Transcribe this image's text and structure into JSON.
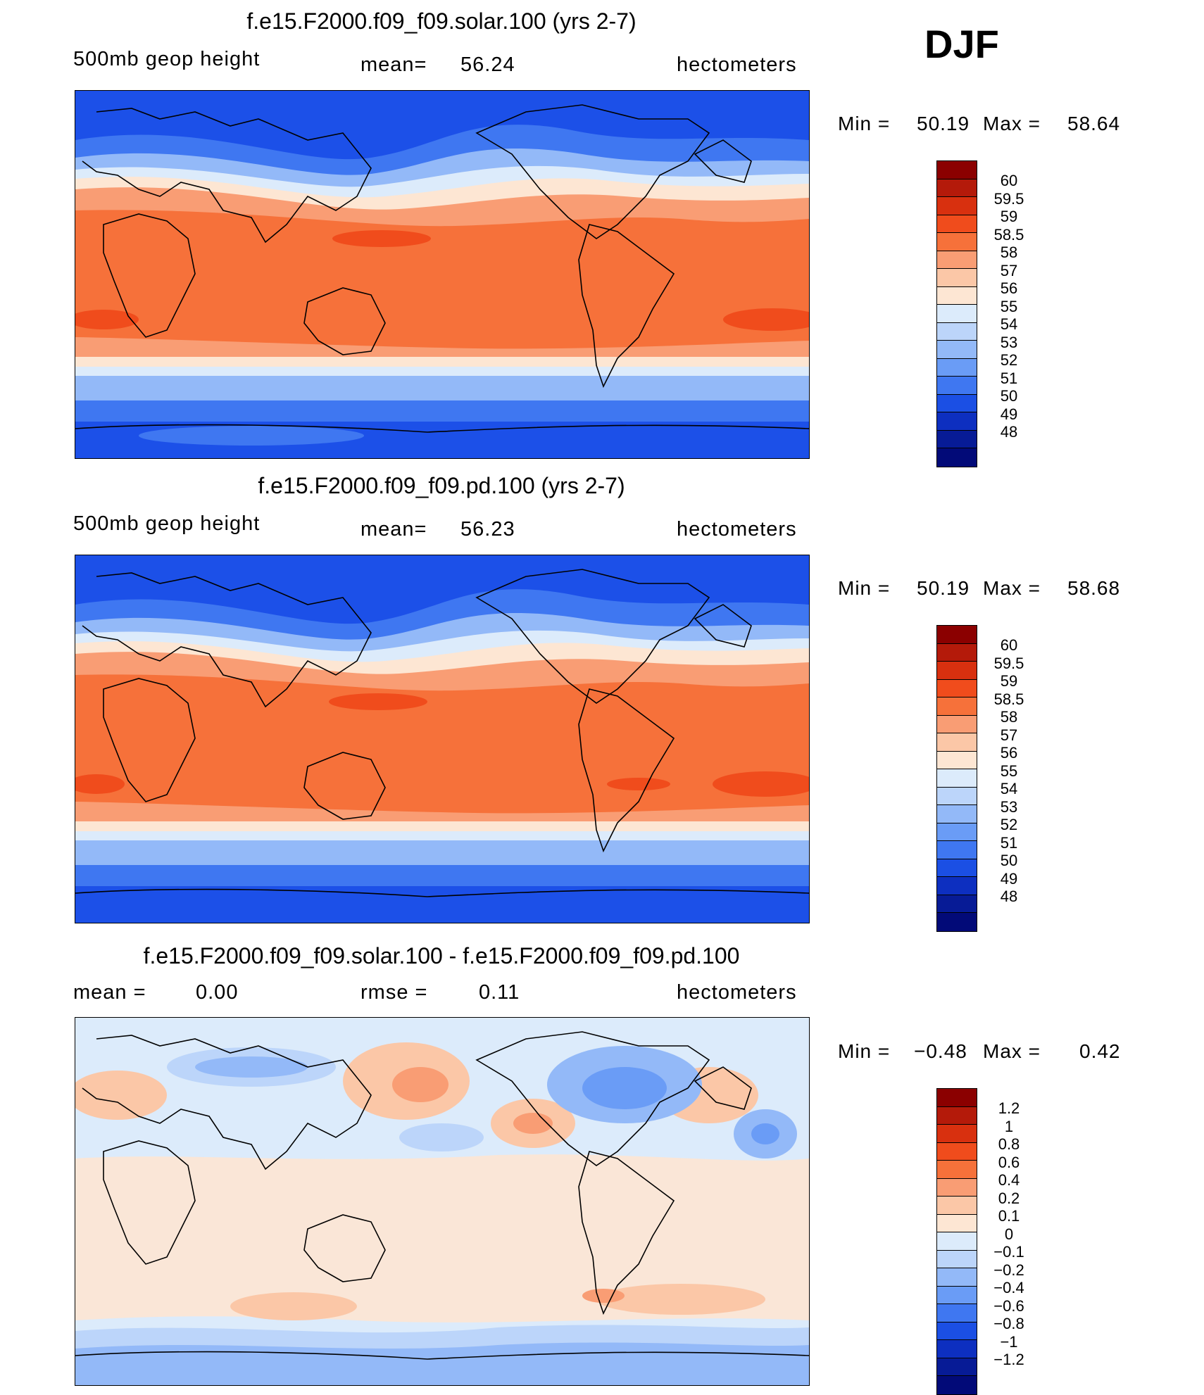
{
  "season": "DJF",
  "panels": [
    {
      "title": "f.e15.F2000.f09_f09.solar.100 (yrs 2-7)",
      "left_label": "500mb geop height",
      "stat_label": "mean=",
      "stat_value": "56.24",
      "units": "hectometers",
      "min_label": "Min =",
      "min_value": "50.19",
      "max_label": "Max =",
      "max_value": "58.64",
      "colorbar_labels": [
        "60",
        "59.5",
        "59",
        "58.5",
        "58",
        "57",
        "56",
        "55",
        "54",
        "53",
        "52",
        "51",
        "50",
        "49",
        "48"
      ]
    },
    {
      "title": "f.e15.F2000.f09_f09.pd.100 (yrs 2-7)",
      "left_label": "500mb geop height",
      "stat_label": "mean=",
      "stat_value": "56.23",
      "units": "hectometers",
      "min_label": "Min =",
      "min_value": "50.19",
      "max_label": "Max =",
      "max_value": "58.68",
      "colorbar_labels": [
        "60",
        "59.5",
        "59",
        "58.5",
        "58",
        "57",
        "56",
        "55",
        "54",
        "53",
        "52",
        "51",
        "50",
        "49",
        "48"
      ]
    },
    {
      "title": "f.e15.F2000.f09_f09.solar.100 - f.e15.F2000.f09_f09.pd.100",
      "left_label": "mean =",
      "left_value": "0.00",
      "stat_label": "rmse =",
      "stat_value": "0.11",
      "units": "hectometers",
      "min_label": "Min =",
      "min_value": "−0.48",
      "max_label": "Max =",
      "max_value": "0.42",
      "colorbar_labels": [
        "1.2",
        "1",
        "0.8",
        "0.6",
        "0.4",
        "0.2",
        "0.1",
        "0",
        "−0.1",
        "−0.2",
        "−0.4",
        "−0.6",
        "−0.8",
        "−1",
        "−1.2"
      ]
    }
  ],
  "colorbar_colors": [
    "#8b0000",
    "#b41a0a",
    "#d8300f",
    "#f04c1c",
    "#f6713a",
    "#f99d74",
    "#fbc7a7",
    "#fde6d3",
    "#dcebfb",
    "#bcd5fa",
    "#93b9f8",
    "#6a9cf6",
    "#3f77f1",
    "#1b4fe4",
    "#0d2fc0",
    "#071b96",
    "#020a78"
  ],
  "map_field_colors": {
    "deep_blue": "#1c50e8",
    "mid_blue": "#3f77f1",
    "light_blue": "#93b9f8",
    "pale_blue": "#dcebfb",
    "pale_orange": "#fde6d3",
    "light_orange": "#f99d74",
    "orange": "#f6713a",
    "red_orange": "#f04c1c"
  },
  "diff_field_colors": {
    "base": "#dcebfb",
    "pos_light": "#fde6d3",
    "pos_mid": "#fbc7a7",
    "pos_strong": "#f99d74",
    "neg_light": "#bcd5fa",
    "neg_mid": "#93b9f8",
    "neg_strong": "#6a9cf6"
  }
}
